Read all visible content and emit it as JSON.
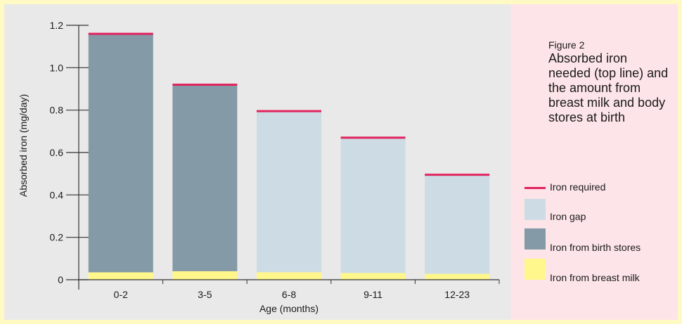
{
  "figure": {
    "label": "Figure 2",
    "caption": "Absorbed iron needed (top line) and the amount from breast milk and body stores at birth"
  },
  "colors": {
    "frame": "#fff9c4",
    "plot_bg": "#e9e9e9",
    "legend_bg": "#fce4e8",
    "iron_required": "#e0245e",
    "iron_gap": "#cddbe4",
    "birth_stores": "#849aa6",
    "breast_milk": "#fff68c"
  },
  "legend": [
    {
      "key": "iron_required",
      "label": "Iron required"
    },
    {
      "key": "iron_gap",
      "label": "Iron gap"
    },
    {
      "key": "birth_stores",
      "label": "Iron from birth stores"
    },
    {
      "key": "breast_milk",
      "label": "Iron from breast milk"
    }
  ],
  "chart_data": {
    "type": "bar",
    "stacked": true,
    "categories": [
      "0-2",
      "3-5",
      "6-8",
      "9-11",
      "12-23"
    ],
    "xlabel": "Age (months)",
    "ylabel": "Absorbed iron (mg/day)",
    "ylim": [
      0,
      1.2
    ],
    "yticks": [
      0,
      0.2,
      0.4,
      0.6,
      0.8,
      1.0,
      1.2
    ],
    "ytick_labels": [
      "0",
      "0.2",
      "0.4",
      "0.6",
      "0.8",
      "1.0",
      "1.2"
    ],
    "series": [
      {
        "name": "Iron from breast milk",
        "key": "breast_milk",
        "values": [
          0.035,
          0.04,
          0.035,
          0.032,
          0.028
        ]
      },
      {
        "name": "Iron from birth stores",
        "key": "birth_stores",
        "values": [
          1.125,
          0.88,
          0,
          0,
          0
        ]
      },
      {
        "name": "Iron gap",
        "key": "iron_gap",
        "values": [
          0,
          0,
          0.76,
          0.638,
          0.467
        ]
      }
    ],
    "required": {
      "name": "Iron required",
      "key": "iron_required",
      "values": [
        1.16,
        0.92,
        0.795,
        0.67,
        0.495
      ]
    }
  }
}
